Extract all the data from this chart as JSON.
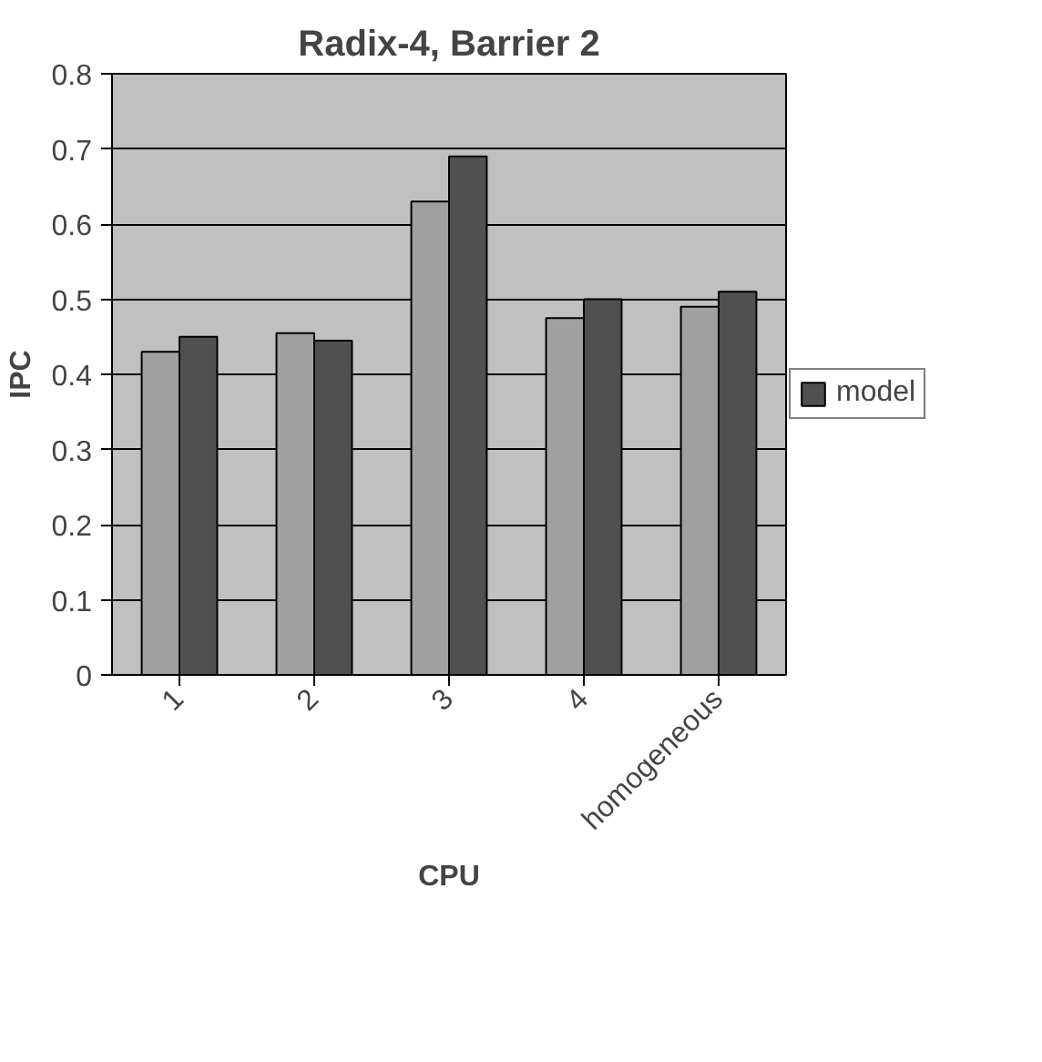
{
  "chart_data": {
    "type": "bar",
    "title": "Radix-4, Barrier 2",
    "xlabel": "CPU",
    "ylabel": "IPC",
    "categories": [
      "1",
      "2",
      "3",
      "4",
      "homogeneous"
    ],
    "series": [
      {
        "color": "#a0a0a0",
        "values": [
          0.43,
          0.455,
          0.63,
          0.475,
          0.49
        ]
      },
      {
        "name": "model",
        "color": "#505050",
        "values": [
          0.45,
          0.445,
          0.69,
          0.5,
          0.51
        ]
      }
    ],
    "ylim": [
      0,
      0.8
    ],
    "yticks": [
      0,
      0.1,
      0.2,
      0.3,
      0.4,
      0.5,
      0.6,
      0.7,
      0.8
    ],
    "grid": "y",
    "legend": "right"
  }
}
